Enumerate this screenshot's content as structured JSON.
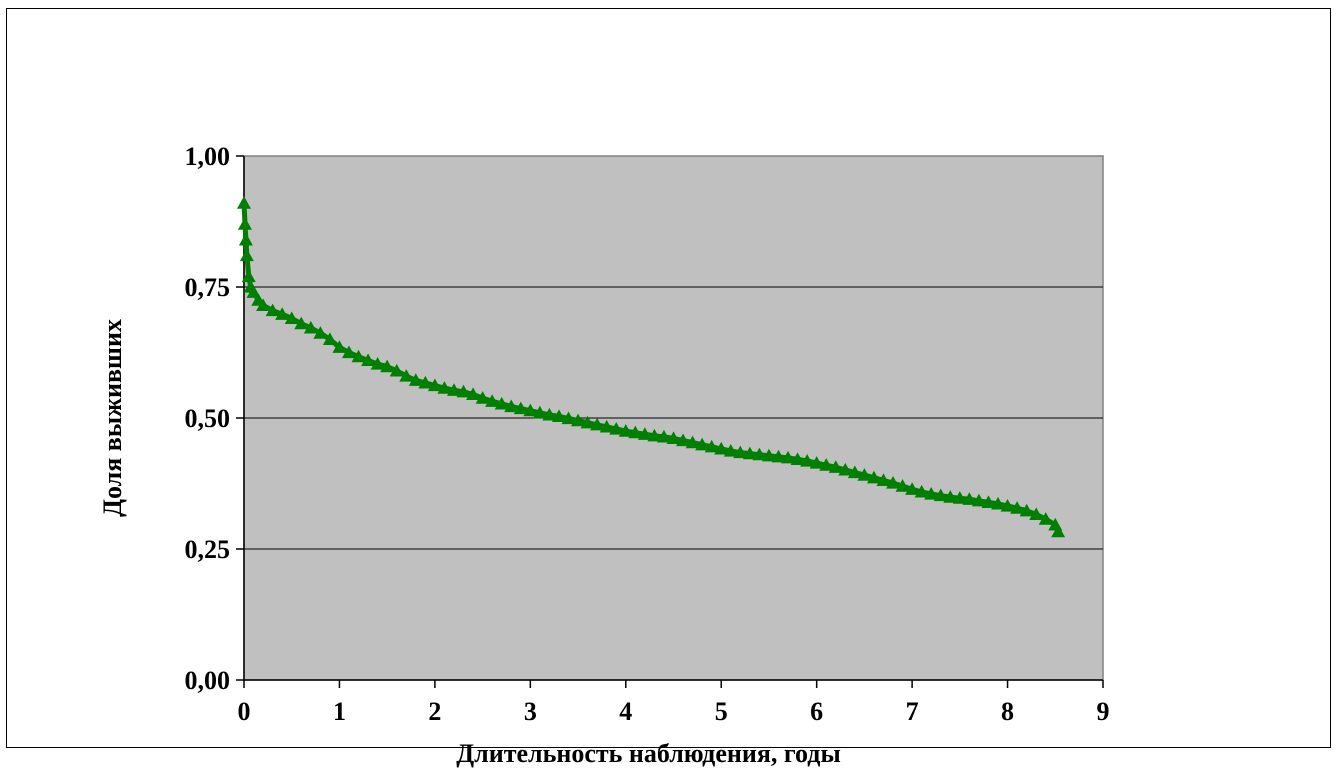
{
  "colors": {
    "plot_area": "#c0c0c0",
    "series": "#008000",
    "grid": "#000000",
    "background": "#ffffff"
  },
  "chart_data": {
    "type": "line",
    "title": "",
    "xlabel": "Длительность наблюдения, годы",
    "ylabel": "Доля выживших",
    "xlim": [
      0,
      9
    ],
    "ylim": [
      0,
      1
    ],
    "grid": true,
    "legend": "none",
    "marker": "triangle",
    "x_ticks": [
      {
        "value": 0,
        "label": "0"
      },
      {
        "value": 1,
        "label": "1"
      },
      {
        "value": 2,
        "label": "2"
      },
      {
        "value": 3,
        "label": "3"
      },
      {
        "value": 4,
        "label": "4"
      },
      {
        "value": 5,
        "label": "5"
      },
      {
        "value": 6,
        "label": "6"
      },
      {
        "value": 7,
        "label": "7"
      },
      {
        "value": 8,
        "label": "8"
      },
      {
        "value": 9,
        "label": "9"
      }
    ],
    "y_ticks": [
      {
        "value": 0,
        "label": "0,00"
      },
      {
        "value": 0.25,
        "label": "0,25"
      },
      {
        "value": 0.5,
        "label": "0,50"
      },
      {
        "value": 0.75,
        "label": "0,75"
      },
      {
        "value": 1,
        "label": "1,00"
      }
    ],
    "series": [
      {
        "x": [
          0,
          0.01,
          0.02,
          0.03,
          0.05,
          0.07,
          0.1,
          0.15,
          0.2,
          0.3,
          0.4,
          0.5,
          0.6,
          0.7,
          0.8,
          0.9,
          1.0,
          1.1,
          1.2,
          1.3,
          1.4,
          1.5,
          1.6,
          1.7,
          1.8,
          1.9,
          2.0,
          2.1,
          2.2,
          2.3,
          2.4,
          2.5,
          2.6,
          2.7,
          2.8,
          2.9,
          3.0,
          3.1,
          3.2,
          3.3,
          3.4,
          3.5,
          3.6,
          3.7,
          3.8,
          3.9,
          4.0,
          4.1,
          4.2,
          4.3,
          4.4,
          4.5,
          4.6,
          4.7,
          4.8,
          4.9,
          5.0,
          5.1,
          5.2,
          5.3,
          5.4,
          5.5,
          5.6,
          5.7,
          5.8,
          5.9,
          6.0,
          6.1,
          6.2,
          6.3,
          6.4,
          6.5,
          6.6,
          6.7,
          6.8,
          6.9,
          7.0,
          7.1,
          7.2,
          7.3,
          7.4,
          7.5,
          7.6,
          7.7,
          7.8,
          7.9,
          8.0,
          8.1,
          8.2,
          8.3,
          8.4,
          8.5,
          8.53
        ],
        "y": [
          0.91,
          0.87,
          0.84,
          0.81,
          0.77,
          0.75,
          0.74,
          0.725,
          0.715,
          0.705,
          0.698,
          0.69,
          0.68,
          0.672,
          0.662,
          0.65,
          0.635,
          0.625,
          0.617,
          0.61,
          0.603,
          0.598,
          0.59,
          0.58,
          0.572,
          0.567,
          0.562,
          0.557,
          0.553,
          0.55,
          0.545,
          0.538,
          0.532,
          0.527,
          0.522,
          0.518,
          0.514,
          0.51,
          0.506,
          0.503,
          0.499,
          0.495,
          0.491,
          0.487,
          0.483,
          0.479,
          0.475,
          0.472,
          0.469,
          0.466,
          0.464,
          0.461,
          0.457,
          0.453,
          0.449,
          0.445,
          0.441,
          0.437,
          0.434,
          0.432,
          0.43,
          0.428,
          0.426,
          0.424,
          0.421,
          0.418,
          0.414,
          0.41,
          0.406,
          0.401,
          0.396,
          0.391,
          0.386,
          0.381,
          0.376,
          0.37,
          0.364,
          0.359,
          0.355,
          0.352,
          0.349,
          0.347,
          0.345,
          0.342,
          0.339,
          0.336,
          0.332,
          0.328,
          0.323,
          0.316,
          0.307,
          0.296,
          0.283
        ]
      }
    ]
  }
}
